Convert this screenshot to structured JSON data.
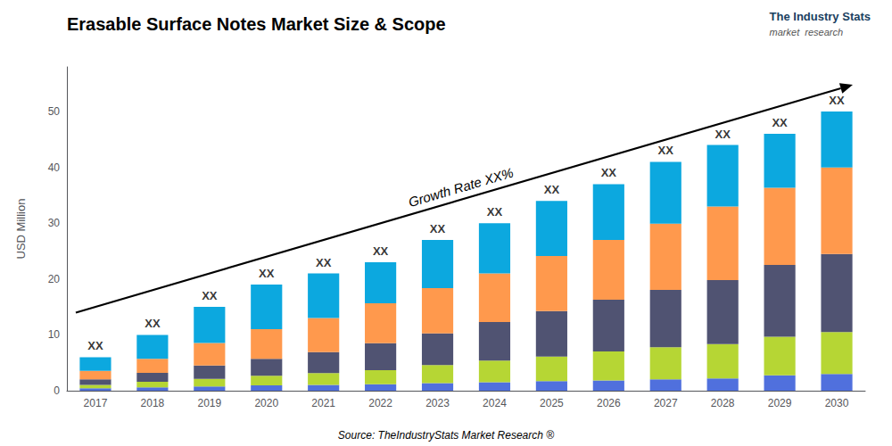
{
  "chart_data": {
    "type": "bar",
    "title": "Erasable Surface Notes Market Size & Scope",
    "source": "Source: TheIndustryStats Market Research ®",
    "ylabel": "USD Million",
    "categories": [
      "2017",
      "2018",
      "2019",
      "2020",
      "2021",
      "2022",
      "2023",
      "2024",
      "2025",
      "2026",
      "2027",
      "2028",
      "2029",
      "2030"
    ],
    "stacked": true,
    "series": [
      {
        "values": [
          0.42,
          0.6,
          0.75,
          0.95,
          1.05,
          1.15,
          1.35,
          1.5,
          1.7,
          1.85,
          2.05,
          2.2,
          2.76,
          3.0
        ]
      },
      {
        "values": [
          0.6,
          1.0,
          1.35,
          1.71,
          2.1,
          2.53,
          3.24,
          3.9,
          4.42,
          5.18,
          5.74,
          6.16,
          6.9,
          7.5
        ]
      },
      {
        "values": [
          1.02,
          1.6,
          2.4,
          3.04,
          3.78,
          4.83,
          5.67,
          6.9,
          8.16,
          9.25,
          10.25,
          11.44,
          12.88,
          14.0
        ]
      },
      {
        "values": [
          1.5,
          2.5,
          4.05,
          5.32,
          6.09,
          7.13,
          8.1,
          8.7,
          9.86,
          10.73,
          11.89,
          13.2,
          13.8,
          15.5
        ]
      },
      {
        "values": [
          2.46,
          4.3,
          6.45,
          7.98,
          7.98,
          7.36,
          8.64,
          9.0,
          9.86,
          9.99,
          11.07,
          11.0,
          9.66,
          10.0
        ]
      }
    ],
    "annotations": [
      {
        "text": "XX",
        "x": "2017",
        "y": 6
      },
      {
        "text": "XX",
        "x": "2018",
        "y": 10
      },
      {
        "text": "XX",
        "x": "2019",
        "y": 15
      },
      {
        "text": "XX",
        "x": "2020",
        "y": 19
      },
      {
        "text": "XX",
        "x": "2021",
        "y": 21
      },
      {
        "text": "XX",
        "x": "2022",
        "y": 23
      },
      {
        "text": "XX",
        "x": "2023",
        "y": 27
      },
      {
        "text": "XX",
        "x": "2024",
        "y": 30
      },
      {
        "text": "XX",
        "x": "2025",
        "y": 34
      },
      {
        "text": "XX",
        "x": "2026",
        "y": 37
      },
      {
        "text": "XX",
        "x": "2027",
        "y": 41
      },
      {
        "text": "XX",
        "x": "2028",
        "y": 44
      },
      {
        "text": "XX",
        "x": "2029",
        "y": 46
      },
      {
        "text": "XX",
        "x": "2030",
        "y": 50
      },
      {
        "text": "Growth Rate XX%",
        "arrow": true
      },
      {
        "text": "The Industry Stats"
      },
      {
        "text": "market  research"
      }
    ],
    "ylim": [
      0,
      58
    ],
    "yticks": [
      0,
      10,
      20,
      30,
      40,
      50
    ],
    "grid": false
  }
}
